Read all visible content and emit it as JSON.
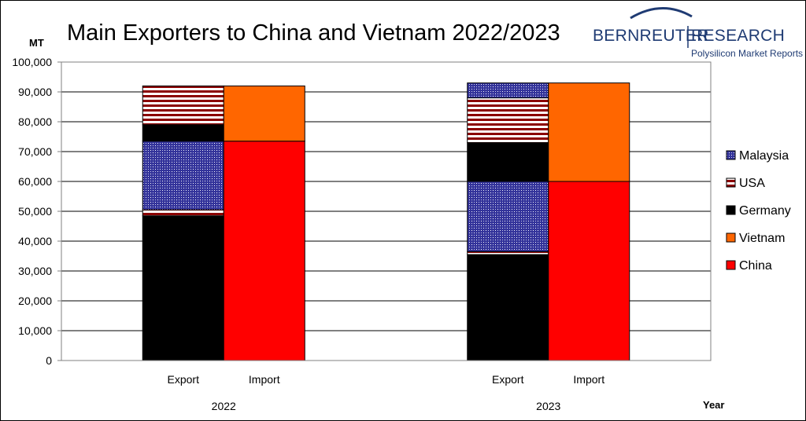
{
  "logo": {
    "name_left": "BERNREUTER",
    "name_right": "RESEARCH",
    "tagline": "Polysilicon Market Reports",
    "color": "#1f3b73"
  },
  "chart_data": {
    "type": "bar",
    "stacked": true,
    "title": "Main Exporters to China and Vietnam 2022/2023",
    "ylabel": "MT",
    "xlabel": "Year",
    "ylim": [
      0,
      100000
    ],
    "yticks": [
      "0",
      "10,000",
      "20,000",
      "30,000",
      "40,000",
      "50,000",
      "60,000",
      "70,000",
      "80,000",
      "90,000",
      "100,000"
    ],
    "grid": true,
    "legend_position": "right",
    "groups": [
      {
        "label": "2022",
        "bars": [
          {
            "label": "Export",
            "segments": [
              {
                "series": "Germany",
                "value": 48500
              },
              {
                "series": "USA",
                "value": 2000
              },
              {
                "series": "Malaysia",
                "value": 23000
              },
              {
                "series": "Germany",
                "value": 5500
              },
              {
                "series": "USA",
                "value": 13000
              }
            ]
          },
          {
            "label": "Import",
            "segments": [
              {
                "series": "China",
                "value": 73500
              },
              {
                "series": "Vietnam",
                "value": 18500
              }
            ]
          }
        ]
      },
      {
        "label": "2023",
        "bars": [
          {
            "label": "Export",
            "segments": [
              {
                "series": "Germany",
                "value": 35500
              },
              {
                "series": "USA",
                "value": 1000
              },
              {
                "series": "Malaysia",
                "value": 23500
              },
              {
                "series": "Germany",
                "value": 13000
              },
              {
                "series": "USA",
                "value": 15000
              },
              {
                "series": "Malaysia",
                "value": 5000
              }
            ]
          },
          {
            "label": "Import",
            "segments": [
              {
                "series": "China",
                "value": 60000
              },
              {
                "series": "Vietnam",
                "value": 33000
              }
            ]
          }
        ]
      }
    ],
    "legend": [
      {
        "series": "Malaysia",
        "label": "Malaysia"
      },
      {
        "series": "USA",
        "label": "USA"
      },
      {
        "series": "Germany",
        "label": "Germany"
      },
      {
        "series": "Vietnam",
        "label": "Vietnam"
      },
      {
        "series": "China",
        "label": "China"
      }
    ],
    "series_colors": {
      "China": "#ff0000",
      "Vietnam": "#ff6600",
      "Germany": "#000000",
      "USA": "#8b0000",
      "Malaysia": "#33339a"
    }
  }
}
